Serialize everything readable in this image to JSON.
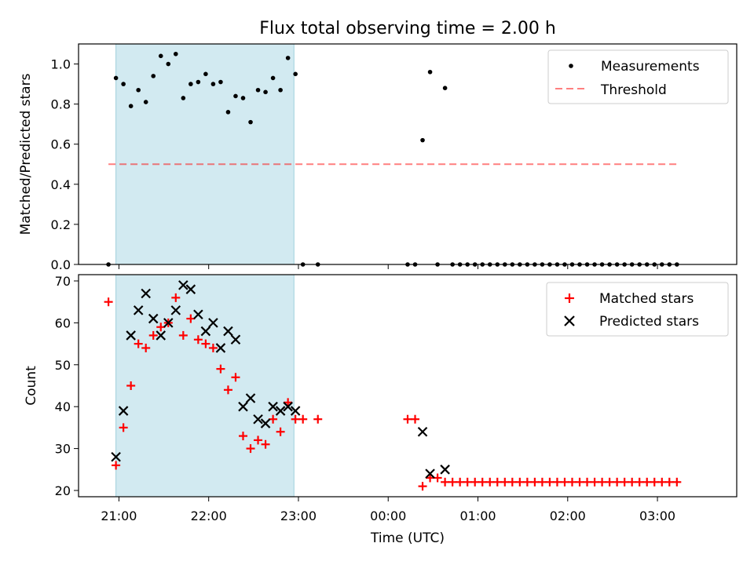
{
  "chart_data": {
    "title": "Flux total observing time = 2.00 h",
    "xlabel": "Time (UTC)",
    "x_ticks": [
      "21:00",
      "22:00",
      "23:00",
      "00:00",
      "01:00",
      "02:00",
      "03:00"
    ],
    "x_range": [
      "20:33",
      "03:53"
    ],
    "shaded_interval": [
      "20:58",
      "22:57"
    ],
    "colors": {
      "shade": "#add8e6",
      "measurement": "#000000",
      "threshold": "#ff0000",
      "matched": "#ff0000",
      "predicted": "#000000"
    },
    "panels": [
      {
        "type": "scatter",
        "ylabel": "Matched/Predicted stars",
        "ylim": [
          0,
          1.1
        ],
        "yticks": [
          "0.0",
          "0.2",
          "0.4",
          "0.6",
          "0.8",
          "1.0"
        ],
        "legend_position": "top-right",
        "series": [
          {
            "name": "Measurements",
            "marker": "dot",
            "points": [
              [
                "20:53",
                0.0
              ],
              [
                "20:58",
                0.93
              ],
              [
                "21:03",
                0.9
              ],
              [
                "21:08",
                0.79
              ],
              [
                "21:13",
                0.87
              ],
              [
                "21:18",
                0.81
              ],
              [
                "21:23",
                0.94
              ],
              [
                "21:28",
                1.04
              ],
              [
                "21:33",
                1.0
              ],
              [
                "21:38",
                1.05
              ],
              [
                "21:43",
                0.83
              ],
              [
                "21:48",
                0.9
              ],
              [
                "21:53",
                0.91
              ],
              [
                "21:58",
                0.95
              ],
              [
                "22:03",
                0.9
              ],
              [
                "22:08",
                0.91
              ],
              [
                "22:13",
                0.76
              ],
              [
                "22:18",
                0.84
              ],
              [
                "22:23",
                0.83
              ],
              [
                "22:28",
                0.71
              ],
              [
                "22:33",
                0.87
              ],
              [
                "22:38",
                0.86
              ],
              [
                "22:43",
                0.93
              ],
              [
                "22:48",
                0.87
              ],
              [
                "22:53",
                1.03
              ],
              [
                "22:58",
                0.95
              ],
              [
                "23:03",
                0.0
              ],
              [
                "23:13",
                0.0
              ],
              [
                "00:13",
                0.0
              ],
              [
                "00:18",
                0.0
              ],
              [
                "00:23",
                0.62
              ],
              [
                "00:28",
                0.96
              ],
              [
                "00:33",
                0.0
              ],
              [
                "00:38",
                0.88
              ],
              [
                "00:43",
                0.0
              ],
              [
                "00:48",
                0.0
              ],
              [
                "00:53",
                0.0
              ],
              [
                "00:58",
                0.0
              ],
              [
                "01:03",
                0.0
              ],
              [
                "01:08",
                0.0
              ],
              [
                "01:13",
                0.0
              ],
              [
                "01:18",
                0.0
              ],
              [
                "01:23",
                0.0
              ],
              [
                "01:28",
                0.0
              ],
              [
                "01:33",
                0.0
              ],
              [
                "01:38",
                0.0
              ],
              [
                "01:43",
                0.0
              ],
              [
                "01:48",
                0.0
              ],
              [
                "01:53",
                0.0
              ],
              [
                "01:58",
                0.0
              ],
              [
                "02:03",
                0.0
              ],
              [
                "02:08",
                0.0
              ],
              [
                "02:13",
                0.0
              ],
              [
                "02:18",
                0.0
              ],
              [
                "02:23",
                0.0
              ],
              [
                "02:28",
                0.0
              ],
              [
                "02:33",
                0.0
              ],
              [
                "02:38",
                0.0
              ],
              [
                "02:43",
                0.0
              ],
              [
                "02:48",
                0.0
              ],
              [
                "02:53",
                0.0
              ],
              [
                "02:58",
                0.0
              ],
              [
                "03:03",
                0.0
              ],
              [
                "03:08",
                0.0
              ],
              [
                "03:13",
                0.0
              ]
            ]
          },
          {
            "name": "Threshold",
            "line": "dashed",
            "points": [
              [
                "20:53",
                0.5
              ],
              [
                "03:13",
                0.5
              ]
            ]
          }
        ]
      },
      {
        "type": "scatter",
        "ylabel": "Count",
        "ylim": [
          18.5,
          71.5
        ],
        "yticks": [
          "20",
          "30",
          "40",
          "50",
          "60",
          "70"
        ],
        "legend_position": "top-right",
        "series": [
          {
            "name": "Matched stars",
            "marker": "plus",
            "points": [
              [
                "20:53",
                65
              ],
              [
                "20:58",
                26
              ],
              [
                "21:03",
                35
              ],
              [
                "21:08",
                45
              ],
              [
                "21:13",
                55
              ],
              [
                "21:18",
                54
              ],
              [
                "21:23",
                57
              ],
              [
                "21:28",
                59
              ],
              [
                "21:33",
                60
              ],
              [
                "21:38",
                66
              ],
              [
                "21:43",
                57
              ],
              [
                "21:48",
                61
              ],
              [
                "21:53",
                56
              ],
              [
                "21:58",
                55
              ],
              [
                "22:03",
                54
              ],
              [
                "22:08",
                49
              ],
              [
                "22:13",
                44
              ],
              [
                "22:18",
                47
              ],
              [
                "22:23",
                33
              ],
              [
                "22:28",
                30
              ],
              [
                "22:33",
                32
              ],
              [
                "22:38",
                31
              ],
              [
                "22:43",
                37
              ],
              [
                "22:48",
                34
              ],
              [
                "22:53",
                41
              ],
              [
                "22:58",
                37
              ],
              [
                "23:03",
                37
              ],
              [
                "23:13",
                37
              ],
              [
                "00:13",
                37
              ],
              [
                "00:18",
                37
              ],
              [
                "00:23",
                21
              ],
              [
                "00:28",
                23
              ],
              [
                "00:33",
                23
              ],
              [
                "00:38",
                22
              ],
              [
                "00:43",
                22
              ],
              [
                "00:48",
                22
              ],
              [
                "00:53",
                22
              ],
              [
                "00:58",
                22
              ],
              [
                "01:03",
                22
              ],
              [
                "01:08",
                22
              ],
              [
                "01:13",
                22
              ],
              [
                "01:18",
                22
              ],
              [
                "01:23",
                22
              ],
              [
                "01:28",
                22
              ],
              [
                "01:33",
                22
              ],
              [
                "01:38",
                22
              ],
              [
                "01:43",
                22
              ],
              [
                "01:48",
                22
              ],
              [
                "01:53",
                22
              ],
              [
                "01:58",
                22
              ],
              [
                "02:03",
                22
              ],
              [
                "02:08",
                22
              ],
              [
                "02:13",
                22
              ],
              [
                "02:18",
                22
              ],
              [
                "02:23",
                22
              ],
              [
                "02:28",
                22
              ],
              [
                "02:33",
                22
              ],
              [
                "02:38",
                22
              ],
              [
                "02:43",
                22
              ],
              [
                "02:48",
                22
              ],
              [
                "02:53",
                22
              ],
              [
                "02:58",
                22
              ],
              [
                "03:03",
                22
              ],
              [
                "03:08",
                22
              ],
              [
                "03:13",
                22
              ]
            ]
          },
          {
            "name": "Predicted stars",
            "marker": "x",
            "points": [
              [
                "20:58",
                28
              ],
              [
                "21:03",
                39
              ],
              [
                "21:08",
                57
              ],
              [
                "21:13",
                63
              ],
              [
                "21:18",
                67
              ],
              [
                "21:23",
                61
              ],
              [
                "21:28",
                57
              ],
              [
                "21:33",
                60
              ],
              [
                "21:38",
                63
              ],
              [
                "21:43",
                69
              ],
              [
                "21:48",
                68
              ],
              [
                "21:53",
                62
              ],
              [
                "21:58",
                58
              ],
              [
                "22:03",
                60
              ],
              [
                "22:08",
                54
              ],
              [
                "22:13",
                58
              ],
              [
                "22:18",
                56
              ],
              [
                "22:23",
                40
              ],
              [
                "22:28",
                42
              ],
              [
                "22:33",
                37
              ],
              [
                "22:38",
                36
              ],
              [
                "22:43",
                40
              ],
              [
                "22:48",
                39
              ],
              [
                "22:53",
                40
              ],
              [
                "22:58",
                39
              ],
              [
                "00:23",
                34
              ],
              [
                "00:28",
                24
              ],
              [
                "00:38",
                25
              ]
            ]
          }
        ]
      }
    ]
  }
}
